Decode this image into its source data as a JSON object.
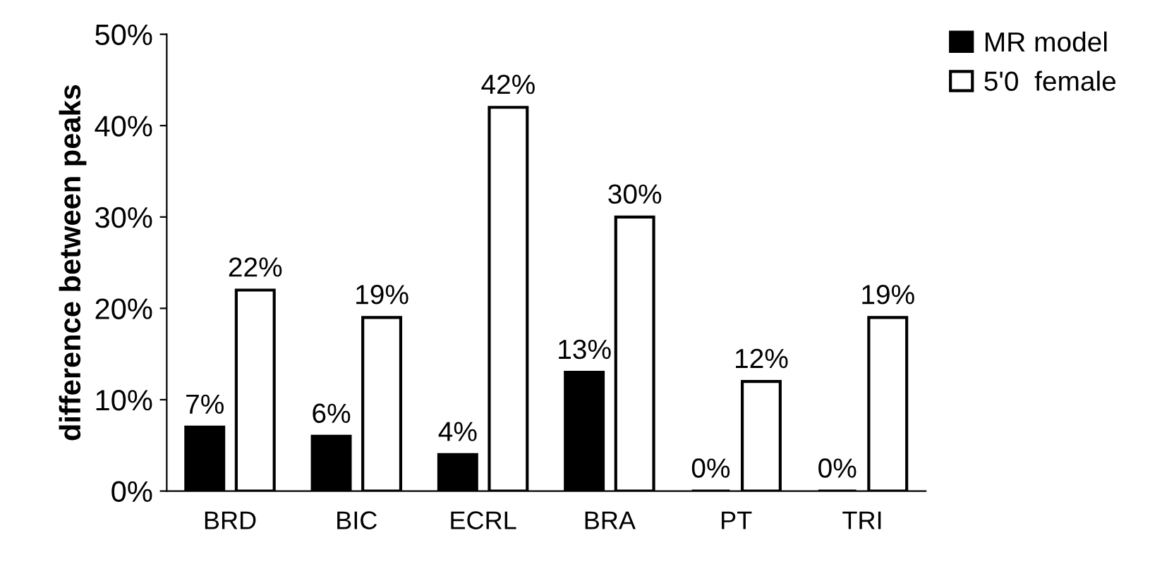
{
  "chart_data": {
    "type": "bar",
    "ylabel": "difference between peaks",
    "categories": [
      "BRD",
      "BIC",
      "ECRL",
      "BRA",
      "PT",
      "TRI"
    ],
    "series": [
      {
        "name": "MR model",
        "color": "#000000",
        "values": [
          7,
          6,
          4,
          13,
          0,
          0
        ],
        "value_labels": [
          "7%",
          "6%",
          "4%",
          "13%",
          "0%",
          "0%"
        ]
      },
      {
        "name": "5'0  female",
        "color": "#ffffff",
        "values": [
          22,
          19,
          42,
          30,
          12,
          19
        ],
        "value_labels": [
          "22%",
          "19%",
          "42%",
          "30%",
          "12%",
          "19%"
        ]
      }
    ],
    "ylim": [
      0,
      50
    ],
    "yticks": [
      {
        "value": 0,
        "label": "0%"
      },
      {
        "value": 10,
        "label": "10%"
      },
      {
        "value": 20,
        "label": "20%"
      },
      {
        "value": 30,
        "label": "30%"
      },
      {
        "value": 40,
        "label": "40%"
      },
      {
        "value": 50,
        "label": "50%"
      }
    ],
    "grid": false,
    "legend": "top right"
  }
}
